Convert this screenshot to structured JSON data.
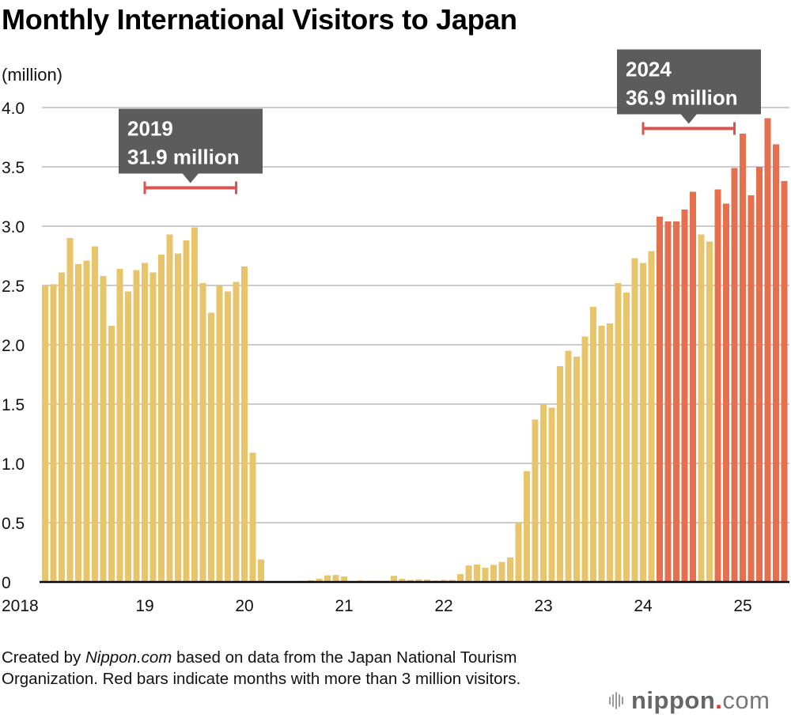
{
  "title": "Monthly International Visitors to Japan",
  "unit_label": "(million)",
  "footer": {
    "prefix": "Created by ",
    "source_name": "Nippon.com",
    "suffix": " based on data from the Japan National Tourism Organization. Red bars indicate months with more than 3 million visitors."
  },
  "logo": {
    "name": "nippon",
    "dot": ".",
    "tld": "com"
  },
  "colors": {
    "normal_bar": "#e8c46a",
    "highlight_bar": "#e66f4e",
    "bracket": "#d9534f",
    "callout_bg": "#5c5c5c",
    "callout_text": "#ffffff",
    "gridline": "#cccccc",
    "axis": "#000000"
  },
  "chart_data": {
    "type": "bar",
    "title": "Monthly International Visitors to Japan",
    "xlabel": "",
    "ylabel": "(million)",
    "ylim": [
      0,
      4.0
    ],
    "yticks": [
      0,
      0.5,
      1.0,
      1.5,
      2.0,
      2.5,
      3.0,
      3.5,
      4.0
    ],
    "ytick_labels": [
      "0",
      "0.5",
      "1.0",
      "1.5",
      "2.0",
      "2.5",
      "3.0",
      "3.5",
      "4.0"
    ],
    "grid": true,
    "threshold": 3.0,
    "start": "2018-01",
    "end": "2025-06",
    "year_labels": [
      {
        "label": "2018",
        "month_index": 0
      },
      {
        "label": "19",
        "month_index": 12
      },
      {
        "label": "20",
        "month_index": 24
      },
      {
        "label": "21",
        "month_index": 36
      },
      {
        "label": "22",
        "month_index": 48
      },
      {
        "label": "23",
        "month_index": 60
      },
      {
        "label": "24",
        "month_index": 72
      },
      {
        "label": "25",
        "month_index": 84
      }
    ],
    "series": [
      {
        "name": "Monthly visitors (million)",
        "values": [
          2.5,
          2.51,
          2.61,
          2.9,
          2.68,
          2.71,
          2.83,
          2.58,
          2.16,
          2.64,
          2.45,
          2.63,
          2.69,
          2.61,
          2.76,
          2.93,
          2.77,
          2.88,
          2.99,
          2.52,
          2.27,
          2.5,
          2.45,
          2.53,
          2.66,
          1.09,
          0.19,
          0.003,
          0.002,
          0.003,
          0.004,
          0.009,
          0.014,
          0.028,
          0.056,
          0.059,
          0.046,
          0.007,
          0.012,
          0.011,
          0.01,
          0.01,
          0.052,
          0.026,
          0.018,
          0.022,
          0.021,
          0.012,
          0.017,
          0.017,
          0.066,
          0.139,
          0.147,
          0.12,
          0.144,
          0.169,
          0.207,
          0.499,
          0.935,
          1.37,
          1.5,
          1.47,
          1.82,
          1.95,
          1.9,
          2.07,
          2.32,
          2.16,
          2.18,
          2.52,
          2.44,
          2.73,
          2.69,
          2.79,
          3.08,
          3.04,
          3.04,
          3.14,
          3.29,
          2.93,
          2.87,
          3.31,
          3.19,
          3.49,
          3.78,
          3.26,
          3.5,
          3.91,
          3.69,
          3.38
        ]
      }
    ],
    "annotations": [
      {
        "year": "2019",
        "total": "31.9 million",
        "start_index": 12,
        "end_index": 23
      },
      {
        "year": "2024",
        "total": "36.9 million",
        "start_index": 72,
        "end_index": 83
      }
    ]
  }
}
